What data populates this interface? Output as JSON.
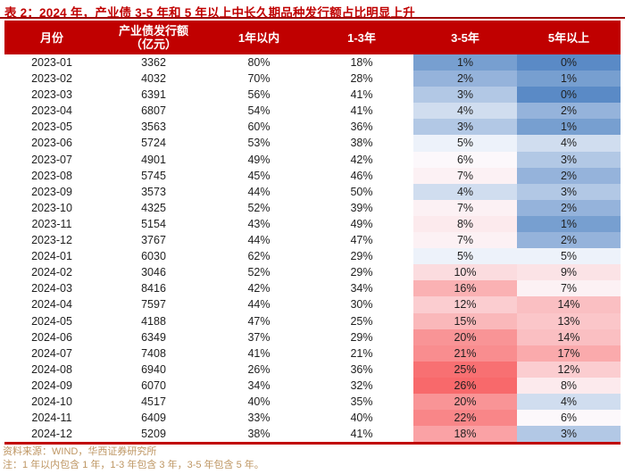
{
  "title": "表 2：2024 年，产业债 3-5 年和 5 年以上中长久期品种发行额占比明显上升",
  "footer": {
    "source": "资料来源：WIND，华西证券研究所",
    "note": "注：1 年以内包含 1 年，1-3 年包含 3 年，3-5 年包含 5 年。"
  },
  "colors": {
    "header_bg": "#C00000",
    "header_text": "#FFFFFF",
    "title": "#C00000",
    "divider": "#A00000",
    "bottom_border": "#C00000",
    "body_text": "#1F1F1F",
    "footer_text": "#BE9663"
  },
  "chart_data": {
    "type": "table",
    "title": "表 2：2024 年，产业债 3-5 年和 5 年以上中长久期品种发行额占比明显上升",
    "columns": [
      "月份",
      "产业债发行额（亿元）",
      "1年以内",
      "1-3年",
      "3-5年",
      "5年以上"
    ],
    "columns_display": [
      [
        "月份"
      ],
      [
        "产业债发行额",
        "（亿元）"
      ],
      [
        "1年以内"
      ],
      [
        "1-3年"
      ],
      [
        "3-5年"
      ],
      [
        "5年以上"
      ]
    ],
    "rows": [
      [
        "2023-01",
        "3362",
        "80%",
        "18%",
        "1%",
        "0%"
      ],
      [
        "2023-02",
        "4032",
        "70%",
        "28%",
        "2%",
        "1%"
      ],
      [
        "2023-03",
        "6391",
        "56%",
        "41%",
        "3%",
        "0%"
      ],
      [
        "2023-04",
        "6807",
        "54%",
        "41%",
        "4%",
        "2%"
      ],
      [
        "2023-05",
        "3563",
        "60%",
        "36%",
        "3%",
        "1%"
      ],
      [
        "2023-06",
        "5724",
        "53%",
        "38%",
        "5%",
        "4%"
      ],
      [
        "2023-07",
        "4901",
        "49%",
        "42%",
        "6%",
        "3%"
      ],
      [
        "2023-08",
        "5745",
        "45%",
        "46%",
        "7%",
        "2%"
      ],
      [
        "2023-09",
        "3573",
        "44%",
        "50%",
        "4%",
        "3%"
      ],
      [
        "2023-10",
        "4325",
        "52%",
        "39%",
        "7%",
        "2%"
      ],
      [
        "2023-11",
        "5154",
        "43%",
        "49%",
        "8%",
        "1%"
      ],
      [
        "2023-12",
        "3767",
        "44%",
        "47%",
        "7%",
        "2%"
      ],
      [
        "2024-01",
        "6030",
        "62%",
        "29%",
        "5%",
        "5%"
      ],
      [
        "2024-02",
        "3046",
        "52%",
        "29%",
        "10%",
        "9%"
      ],
      [
        "2024-03",
        "8416",
        "42%",
        "34%",
        "16%",
        "7%"
      ],
      [
        "2024-04",
        "7597",
        "44%",
        "30%",
        "12%",
        "14%"
      ],
      [
        "2024-05",
        "4188",
        "47%",
        "25%",
        "15%",
        "13%"
      ],
      [
        "2024-06",
        "6349",
        "37%",
        "29%",
        "20%",
        "14%"
      ],
      [
        "2024-07",
        "7408",
        "41%",
        "21%",
        "21%",
        "17%"
      ],
      [
        "2024-08",
        "6940",
        "26%",
        "36%",
        "25%",
        "12%"
      ],
      [
        "2024-09",
        "6070",
        "34%",
        "32%",
        "26%",
        "8%"
      ],
      [
        "2024-10",
        "4517",
        "40%",
        "35%",
        "20%",
        "4%"
      ],
      [
        "2024-11",
        "6409",
        "33%",
        "40%",
        "22%",
        "6%"
      ],
      [
        "2024-12",
        "5209",
        "38%",
        "41%",
        "18%",
        "3%"
      ]
    ],
    "heatmap": {
      "applies_to_columns": [
        4,
        5
      ],
      "min_value": 0,
      "mid_value": 5.5,
      "max_value": 26,
      "min_color": "#5A8AC6",
      "mid_color": "#FCFCFF",
      "max_color": "#F8696B"
    },
    "layout": {
      "grid": "none",
      "value_alignment": "center",
      "heatmap_note": "blue = low share, white = mid, red = high share"
    }
  }
}
